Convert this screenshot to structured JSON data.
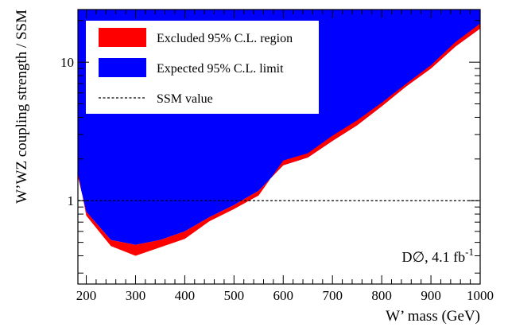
{
  "chart_data": {
    "type": "area",
    "xlabel": "W’ mass (GeV)",
    "ylabel": "W’WZ coupling strength / SSM",
    "xlim": [
      183,
      1000
    ],
    "ylim": [
      0.25,
      24
    ],
    "yscale": "log",
    "x_ticks": [
      200,
      300,
      400,
      500,
      600,
      700,
      800,
      900,
      1000
    ],
    "x_tick_labels": [
      "200",
      "300",
      "400",
      "500",
      "600",
      "700",
      "800",
      "900",
      "1000"
    ],
    "y_ticks": [
      1,
      10
    ],
    "y_tick_labels": [
      "1",
      "10"
    ],
    "legend": {
      "placement": "top-left",
      "entries": [
        {
          "label": "Excluded 95% C.L. region",
          "color": "#ff0000",
          "kind": "fill"
        },
        {
          "label": "Expected 95% C.L. limit",
          "color": "#0000ff",
          "kind": "fill"
        },
        {
          "label": "SSM value",
          "color": "#000000",
          "kind": "dashed-line"
        }
      ]
    },
    "ssm_value": 1,
    "annotation": {
      "prefix": "D∅, 4.1 fb",
      "superscript": "-1"
    },
    "series": [
      {
        "name": "Expected 95% C.L. limit",
        "color": "#0000ff",
        "x": [
          183,
          200,
          250,
          300,
          350,
          400,
          450,
          500,
          550,
          600,
          650,
          700,
          750,
          800,
          850,
          900,
          950,
          1000
        ],
        "y": [
          1.5,
          0.83,
          0.52,
          0.48,
          0.52,
          0.6,
          0.76,
          0.93,
          1.18,
          1.8,
          2.05,
          2.7,
          3.5,
          4.8,
          6.7,
          9.0,
          13.0,
          17.5
        ]
      },
      {
        "name": "Excluded 95% C.L. region",
        "color": "#ff0000",
        "x": [
          183,
          200,
          250,
          300,
          350,
          400,
          450,
          500,
          550,
          600,
          650,
          700,
          750,
          800,
          850,
          900,
          950,
          1000
        ],
        "y": [
          1.6,
          0.78,
          0.47,
          0.4,
          0.46,
          0.53,
          0.71,
          0.87,
          1.09,
          1.95,
          2.2,
          2.95,
          3.8,
          5.1,
          7.0,
          9.5,
          14.0,
          19.0
        ]
      }
    ]
  }
}
